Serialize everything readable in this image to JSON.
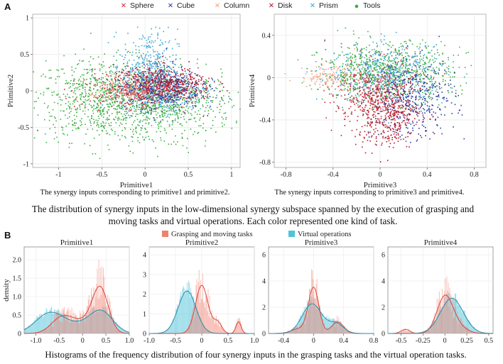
{
  "panel_a": {
    "label": "A",
    "legend": [
      {
        "name": "Sphere",
        "marker": "×",
        "color": "#d62839"
      },
      {
        "name": "Cube",
        "marker": "×",
        "color": "#2a3f9d"
      },
      {
        "name": "Column",
        "marker": "×",
        "color": "#f4a582"
      },
      {
        "name": "Disk",
        "marker": "×",
        "color": "#b2182b"
      },
      {
        "name": "Prism",
        "marker": "×",
        "color": "#3fa7d6"
      },
      {
        "name": "Tools",
        "marker": "●",
        "color": "#3cb043"
      }
    ],
    "left_caption": "The synergy inputs corresponding to primitive1 and primitive2.",
    "right_caption": "The synergy inputs corresponding to primitive3 and primitive4.",
    "main_caption": "The distribution of synergy inputs in the low-dimensional synergy subspace spanned by the execution of grasping and moving tasks and virtual operations. Each color represented one kind of task."
  },
  "panel_b": {
    "label": "B",
    "legend": [
      {
        "name": "Grasping and moving tasks",
        "color": "#f08070"
      },
      {
        "name": "Virtual operations",
        "color": "#4fc3d9"
      }
    ],
    "ylabel": "density",
    "caption": "Histograms of the frequency distribution of four synergy inputs in the grasping tasks and the virtual operation tasks."
  },
  "chart_data": [
    {
      "type": "scatter",
      "title": "",
      "xlabel": "Primitive1",
      "ylabel": "Primitive2",
      "xlim": [
        -1.3,
        1.1
      ],
      "ylim": [
        -1.05,
        1.05
      ],
      "xticks": [
        "-1",
        "-0.5",
        "0",
        "0.5",
        "1"
      ],
      "xtick_values": [
        -1,
        -0.5,
        0,
        0.5,
        1
      ],
      "yticks": [
        "1",
        "0.5",
        "0",
        "-0.5",
        "-1"
      ],
      "ytick_values": [
        1,
        0.5,
        0,
        -0.5,
        -1
      ],
      "clusters": [
        {
          "series": "Tools",
          "color": "#3cb043",
          "cx": -0.45,
          "cy": -0.12,
          "sx": 0.42,
          "sy": 0.28,
          "n": 900
        },
        {
          "series": "Tools",
          "color": "#3cb043",
          "cx": 0.3,
          "cy": -0.2,
          "sx": 0.35,
          "sy": 0.22,
          "n": 500
        },
        {
          "series": "Prism",
          "color": "#3fa7d6",
          "cx": 0.05,
          "cy": 0.35,
          "sx": 0.16,
          "sy": 0.25,
          "n": 350
        },
        {
          "series": "Prism",
          "color": "#3fa7d6",
          "cx": 0.2,
          "cy": 0.0,
          "sx": 0.25,
          "sy": 0.14,
          "n": 400
        },
        {
          "series": "Cube",
          "color": "#2a3f9d",
          "cx": 0.15,
          "cy": 0.05,
          "sx": 0.25,
          "sy": 0.15,
          "n": 450
        },
        {
          "series": "Disk",
          "color": "#b2182b",
          "cx": 0.3,
          "cy": 0.08,
          "sx": 0.25,
          "sy": 0.12,
          "n": 350
        },
        {
          "series": "Sphere",
          "color": "#d62839",
          "cx": -0.1,
          "cy": 0.05,
          "sx": 0.3,
          "sy": 0.13,
          "n": 350
        },
        {
          "series": "Column",
          "color": "#f4a582",
          "cx": -0.25,
          "cy": 0.0,
          "sx": 0.2,
          "sy": 0.1,
          "n": 120
        }
      ]
    },
    {
      "type": "scatter",
      "title": "",
      "xlabel": "Primitive3",
      "ylabel": "Primitive4",
      "xlim": [
        -0.9,
        0.9
      ],
      "ylim": [
        -0.85,
        0.6
      ],
      "xticks": [
        "-0.8",
        "-0.4",
        "0",
        "0.4",
        "0.8"
      ],
      "xtick_values": [
        -0.8,
        -0.4,
        0,
        0.4,
        0.8
      ],
      "yticks": [
        "0.4",
        "0",
        "-0.4",
        "-0.8"
      ],
      "ytick_values": [
        0.4,
        0,
        -0.4,
        -0.8
      ],
      "clusters": [
        {
          "series": "Tools",
          "color": "#3cb043",
          "cx": 0.05,
          "cy": 0.05,
          "sx": 0.28,
          "sy": 0.14,
          "n": 800
        },
        {
          "series": "Prism",
          "color": "#3fa7d6",
          "cx": 0.05,
          "cy": 0.05,
          "sx": 0.25,
          "sy": 0.14,
          "n": 500
        },
        {
          "series": "Cube",
          "color": "#2a3f9d",
          "cx": 0.28,
          "cy": -0.2,
          "sx": 0.18,
          "sy": 0.18,
          "n": 400
        },
        {
          "series": "Disk",
          "color": "#b2182b",
          "cx": 0.05,
          "cy": -0.35,
          "sx": 0.15,
          "sy": 0.15,
          "n": 350
        },
        {
          "series": "Sphere",
          "color": "#d62839",
          "cx": -0.05,
          "cy": -0.15,
          "sx": 0.18,
          "sy": 0.16,
          "n": 350
        },
        {
          "series": "Column",
          "color": "#f4a582",
          "cx": -0.45,
          "cy": 0.02,
          "sx": 0.12,
          "sy": 0.06,
          "n": 120
        }
      ]
    },
    {
      "type": "histogram",
      "title": "Primitive1",
      "xlim": [
        -1.25,
        1.0
      ],
      "ylim": [
        0,
        2.35
      ],
      "xticks": [
        "-1.0",
        "-0.5",
        "0",
        "0.5",
        "1.0"
      ],
      "xtick_values": [
        -1,
        -0.5,
        0,
        0.5,
        1
      ],
      "yticks": [
        "0",
        "0.5",
        "1.0",
        "1.5",
        "2.0"
      ],
      "ytick_values": [
        0,
        0.5,
        1,
        1.5,
        2
      ],
      "series": [
        {
          "name": "Grasping and moving tasks",
          "color": "#f08070",
          "components": [
            {
              "mu": -0.45,
              "sd": 0.22,
              "w": 0.25
            },
            {
              "mu": 0.38,
              "sd": 0.17,
              "w": 0.55
            },
            {
              "mu": 0.0,
              "sd": 0.25,
              "w": 0.2
            }
          ],
          "scale": 1.0
        },
        {
          "name": "Virtual operations",
          "color": "#4fc3d9",
          "components": [
            {
              "mu": -0.7,
              "sd": 0.3,
              "w": 0.45
            },
            {
              "mu": 0.4,
              "sd": 0.25,
              "w": 0.4
            },
            {
              "mu": -0.1,
              "sd": 0.3,
              "w": 0.15
            }
          ],
          "scale": 1.0
        }
      ]
    },
    {
      "type": "histogram",
      "title": "Primitive2",
      "xlim": [
        -1.0,
        1.0
      ],
      "ylim": [
        0,
        4.4
      ],
      "xticks": [
        "-1.0",
        "-0.5",
        "0",
        "0.5",
        "1.0"
      ],
      "xtick_values": [
        -1,
        -0.5,
        0,
        0.5,
        1
      ],
      "yticks": [
        "0",
        "1",
        "2",
        "3",
        "4"
      ],
      "ytick_values": [
        0,
        1,
        2,
        3,
        4
      ],
      "series": [
        {
          "name": "Grasping and moving tasks",
          "color": "#f08070",
          "components": [
            {
              "mu": 0.0,
              "sd": 0.12,
              "w": 0.8
            },
            {
              "mu": 0.3,
              "sd": 0.08,
              "w": 0.12
            },
            {
              "mu": 0.7,
              "sd": 0.05,
              "w": 0.08
            }
          ],
          "scale": 1.0
        },
        {
          "name": "Virtual operations",
          "color": "#4fc3d9",
          "components": [
            {
              "mu": -0.28,
              "sd": 0.17,
              "w": 1.0
            }
          ],
          "scale": 1.0
        }
      ]
    },
    {
      "type": "histogram",
      "title": "Primitive3",
      "xlim": [
        -0.6,
        0.8
      ],
      "ylim": [
        0,
        6.6
      ],
      "xticks": [
        "-0.4",
        "0",
        "0.4",
        "0.8"
      ],
      "xtick_values": [
        -0.4,
        0,
        0.4,
        0.8
      ],
      "yticks": [
        "0",
        "2",
        "4",
        "6"
      ],
      "ytick_values": [
        0,
        2,
        4,
        6
      ],
      "series": [
        {
          "name": "Grasping and moving tasks",
          "color": "#f08070",
          "components": [
            {
              "mu": 0.0,
              "sd": 0.07,
              "w": 0.7
            },
            {
              "mu": 0.32,
              "sd": 0.08,
              "w": 0.2
            },
            {
              "mu": -0.2,
              "sd": 0.1,
              "w": 0.1
            }
          ],
          "scale": 0.95
        },
        {
          "name": "Virtual operations",
          "color": "#4fc3d9",
          "components": [
            {
              "mu": -0.02,
              "sd": 0.13,
              "w": 0.8
            },
            {
              "mu": 0.3,
              "sd": 0.1,
              "w": 0.2
            }
          ],
          "scale": 1.0
        }
      ]
    },
    {
      "type": "histogram",
      "title": "Primitive4",
      "xlim": [
        -0.65,
        0.55
      ],
      "ylim": [
        0,
        6.6
      ],
      "xticks": [
        "-0.5",
        "-0.25",
        "0",
        "0.25",
        "0.5"
      ],
      "xtick_values": [
        -0.5,
        -0.25,
        0,
        0.25,
        0.5
      ],
      "yticks": [
        "0",
        "2",
        "4",
        "6"
      ],
      "ytick_values": [
        0,
        2,
        4,
        6
      ],
      "series": [
        {
          "name": "Grasping and moving tasks",
          "color": "#f08070",
          "components": [
            {
              "mu": 0.0,
              "sd": 0.09,
              "w": 0.8
            },
            {
              "mu": -0.45,
              "sd": 0.05,
              "w": 0.05
            },
            {
              "mu": 0.15,
              "sd": 0.1,
              "w": 0.15
            }
          ],
          "scale": 0.85
        },
        {
          "name": "Virtual operations",
          "color": "#4fc3d9",
          "components": [
            {
              "mu": 0.08,
              "sd": 0.13,
              "w": 1.0
            }
          ],
          "scale": 0.95
        }
      ]
    }
  ]
}
